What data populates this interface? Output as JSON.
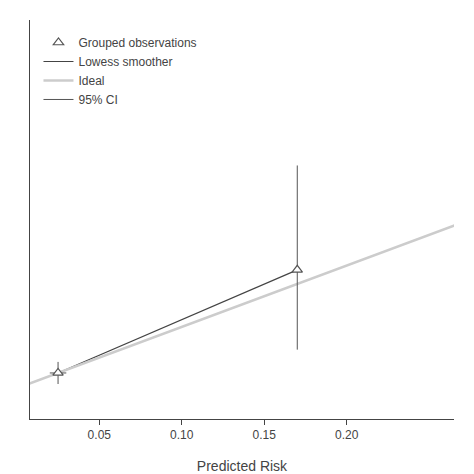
{
  "chart_data": {
    "type": "scatter",
    "xlabel": "Predicted Risk",
    "xlim": [
      0.008,
      0.265
    ],
    "ylim": [
      -0.05,
      0.6
    ],
    "xticks": [
      0.05,
      {
        "value": 0.1,
        "label": "0.10"
      },
      0.15,
      {
        "value": 0.2,
        "label": "0.20"
      }
    ],
    "tick_labels": "x",
    "grid": false,
    "legend": "upper left",
    "series": [
      {
        "name": "Grouped observations",
        "type": "scatter",
        "marker": "triangle-up",
        "color": "#555555",
        "x": [
          0.025,
          0.17
        ],
        "values": [
          0.025,
          0.193
        ],
        "yerr_lo": [
          0.018,
          0.13
        ],
        "yerr_hi": [
          0.018,
          0.17
        ],
        "xerr_lo": [
          0.005,
          null
        ],
        "xerr_hi": [
          0.005,
          null
        ]
      },
      {
        "name": "Lowess smoother",
        "type": "line",
        "color": "#444444",
        "x": [
          0.025,
          0.17
        ],
        "values": [
          0.025,
          0.193
        ]
      },
      {
        "name": "Ideal",
        "type": "line",
        "color": "#cccccc",
        "x": [
          0.0,
          0.3
        ],
        "values": [
          0.0,
          0.3
        ]
      },
      {
        "name": "95% CI",
        "type": "error_bar",
        "color": "#555555"
      }
    ]
  }
}
